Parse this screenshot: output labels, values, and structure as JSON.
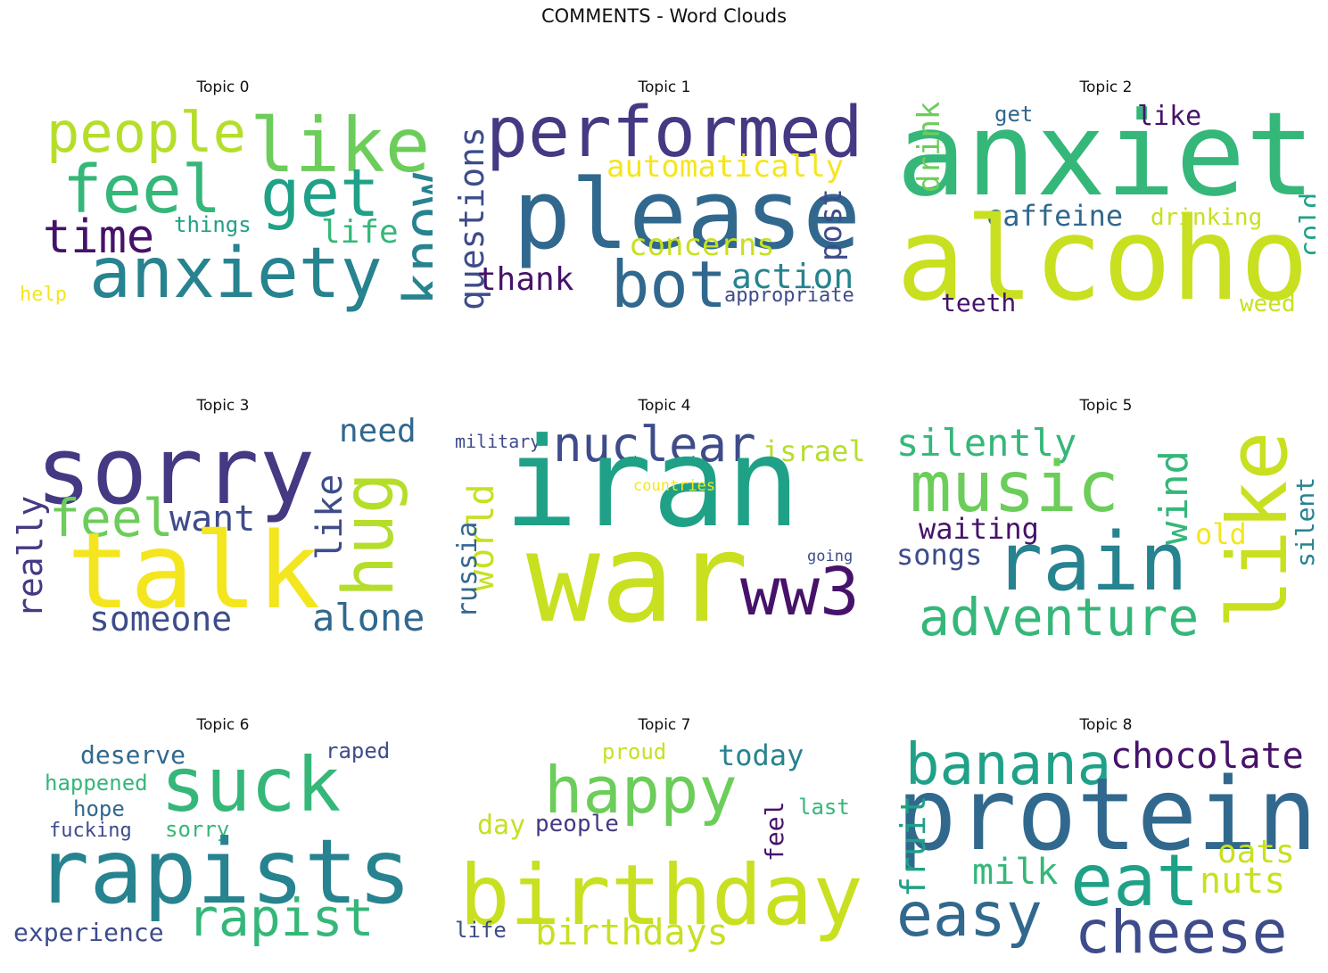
{
  "title": "COMMENTS - Word Clouds",
  "colors": {
    "dark_purple": "#46126a",
    "indigo": "#443983",
    "slate_blue": "#3e4c8a",
    "steel_blue": "#31688e",
    "teal": "#26838f",
    "green_teal": "#1fa187",
    "sea_green": "#35b779",
    "green": "#6ccd5a",
    "lime": "#b5de2b",
    "yellow_green": "#c8e020",
    "yellow": "#f4e61e"
  },
  "chart_data": [
    {
      "type": "wordcloud",
      "title": "Topic 0",
      "words": [
        {
          "text": "like",
          "c": "green"
        },
        {
          "text": "people",
          "c": "lime"
        },
        {
          "text": "feel",
          "c": "sea_green"
        },
        {
          "text": "get",
          "c": "green_teal"
        },
        {
          "text": "know",
          "c": "teal"
        },
        {
          "text": "time",
          "c": "dark_purple"
        },
        {
          "text": "things",
          "c": "green_teal"
        },
        {
          "text": "life",
          "c": "sea_green"
        },
        {
          "text": "anxiety",
          "c": "teal"
        },
        {
          "text": "help",
          "c": "yellow"
        }
      ]
    },
    {
      "type": "wordcloud",
      "title": "Topic 1",
      "words": [
        {
          "text": "performed",
          "c": "indigo"
        },
        {
          "text": "questions",
          "c": "slate_blue"
        },
        {
          "text": "automatically",
          "c": "yellow"
        },
        {
          "text": "please",
          "c": "steel_blue"
        },
        {
          "text": "post",
          "c": "slate_blue"
        },
        {
          "text": "concerns",
          "c": "yellow_green"
        },
        {
          "text": "thank",
          "c": "dark_purple"
        },
        {
          "text": "bot",
          "c": "steel_blue"
        },
        {
          "text": "action",
          "c": "teal"
        },
        {
          "text": "appropriate",
          "c": "slate_blue"
        }
      ]
    },
    {
      "type": "wordcloud",
      "title": "Topic 2",
      "words": [
        {
          "text": "anxiety",
          "c": "sea_green"
        },
        {
          "text": "get",
          "c": "steel_blue"
        },
        {
          "text": "like",
          "c": "dark_purple"
        },
        {
          "text": "drink",
          "c": "green"
        },
        {
          "text": "caffeine",
          "c": "steel_blue"
        },
        {
          "text": "drinking",
          "c": "yellow_green"
        },
        {
          "text": "cold",
          "c": "green_teal"
        },
        {
          "text": "alcohol",
          "c": "yellow_green"
        },
        {
          "text": "teeth",
          "c": "dark_purple"
        },
        {
          "text": "weed",
          "c": "yellow_green"
        }
      ]
    },
    {
      "type": "wordcloud",
      "title": "Topic 3",
      "words": [
        {
          "text": "sorry",
          "c": "indigo"
        },
        {
          "text": "need",
          "c": "steel_blue"
        },
        {
          "text": "hug",
          "c": "lime"
        },
        {
          "text": "feel",
          "c": "green"
        },
        {
          "text": "want",
          "c": "slate_blue"
        },
        {
          "text": "like",
          "c": "slate_blue"
        },
        {
          "text": "really",
          "c": "indigo"
        },
        {
          "text": "talk",
          "c": "yellow"
        },
        {
          "text": "someone",
          "c": "slate_blue"
        },
        {
          "text": "alone",
          "c": "steel_blue"
        }
      ]
    },
    {
      "type": "wordcloud",
      "title": "Topic 4",
      "words": [
        {
          "text": "military",
          "c": "slate_blue"
        },
        {
          "text": "nuclear",
          "c": "slate_blue"
        },
        {
          "text": "israel",
          "c": "lime"
        },
        {
          "text": "iran",
          "c": "green_teal"
        },
        {
          "text": "countries",
          "c": "yellow"
        },
        {
          "text": "world",
          "c": "yellow_green"
        },
        {
          "text": "russia",
          "c": "steel_blue"
        },
        {
          "text": "going",
          "c": "slate_blue"
        },
        {
          "text": "war",
          "c": "yellow_green"
        },
        {
          "text": "ww3",
          "c": "dark_purple"
        }
      ]
    },
    {
      "type": "wordcloud",
      "title": "Topic 5",
      "words": [
        {
          "text": "silently",
          "c": "sea_green"
        },
        {
          "text": "music",
          "c": "green"
        },
        {
          "text": "wind",
          "c": "sea_green"
        },
        {
          "text": "like",
          "c": "yellow_green"
        },
        {
          "text": "silent",
          "c": "teal"
        },
        {
          "text": "waiting",
          "c": "dark_purple"
        },
        {
          "text": "old",
          "c": "yellow"
        },
        {
          "text": "songs",
          "c": "slate_blue"
        },
        {
          "text": "rain",
          "c": "teal"
        },
        {
          "text": "adventure",
          "c": "sea_green"
        }
      ]
    },
    {
      "type": "wordcloud",
      "title": "Topic 6",
      "words": [
        {
          "text": "deserve",
          "c": "steel_blue"
        },
        {
          "text": "raped",
          "c": "slate_blue"
        },
        {
          "text": "happened",
          "c": "sea_green"
        },
        {
          "text": "suck",
          "c": "sea_green"
        },
        {
          "text": "hope",
          "c": "steel_blue"
        },
        {
          "text": "fucking",
          "c": "slate_blue"
        },
        {
          "text": "sorry",
          "c": "sea_green"
        },
        {
          "text": "rapists",
          "c": "teal"
        },
        {
          "text": "experience",
          "c": "slate_blue"
        },
        {
          "text": "rapist",
          "c": "sea_green"
        }
      ]
    },
    {
      "type": "wordcloud",
      "title": "Topic 7",
      "words": [
        {
          "text": "proud",
          "c": "yellow_green"
        },
        {
          "text": "today",
          "c": "teal"
        },
        {
          "text": "happy",
          "c": "green"
        },
        {
          "text": "last",
          "c": "sea_green"
        },
        {
          "text": "day",
          "c": "yellow_green"
        },
        {
          "text": "people",
          "c": "indigo"
        },
        {
          "text": "feel",
          "c": "dark_purple"
        },
        {
          "text": "birthday",
          "c": "yellow_green"
        },
        {
          "text": "life",
          "c": "slate_blue"
        },
        {
          "text": "birthdays",
          "c": "yellow_green"
        }
      ]
    },
    {
      "type": "wordcloud",
      "title": "Topic 8",
      "words": [
        {
          "text": "banana",
          "c": "green_teal"
        },
        {
          "text": "chocolate",
          "c": "dark_purple"
        },
        {
          "text": "protein",
          "c": "steel_blue"
        },
        {
          "text": "fruit",
          "c": "green_teal"
        },
        {
          "text": "oats",
          "c": "yellow_green"
        },
        {
          "text": "milk",
          "c": "sea_green"
        },
        {
          "text": "eat",
          "c": "green_teal"
        },
        {
          "text": "nuts",
          "c": "yellow_green"
        },
        {
          "text": "easy",
          "c": "steel_blue"
        },
        {
          "text": "cheese",
          "c": "slate_blue"
        }
      ]
    }
  ]
}
